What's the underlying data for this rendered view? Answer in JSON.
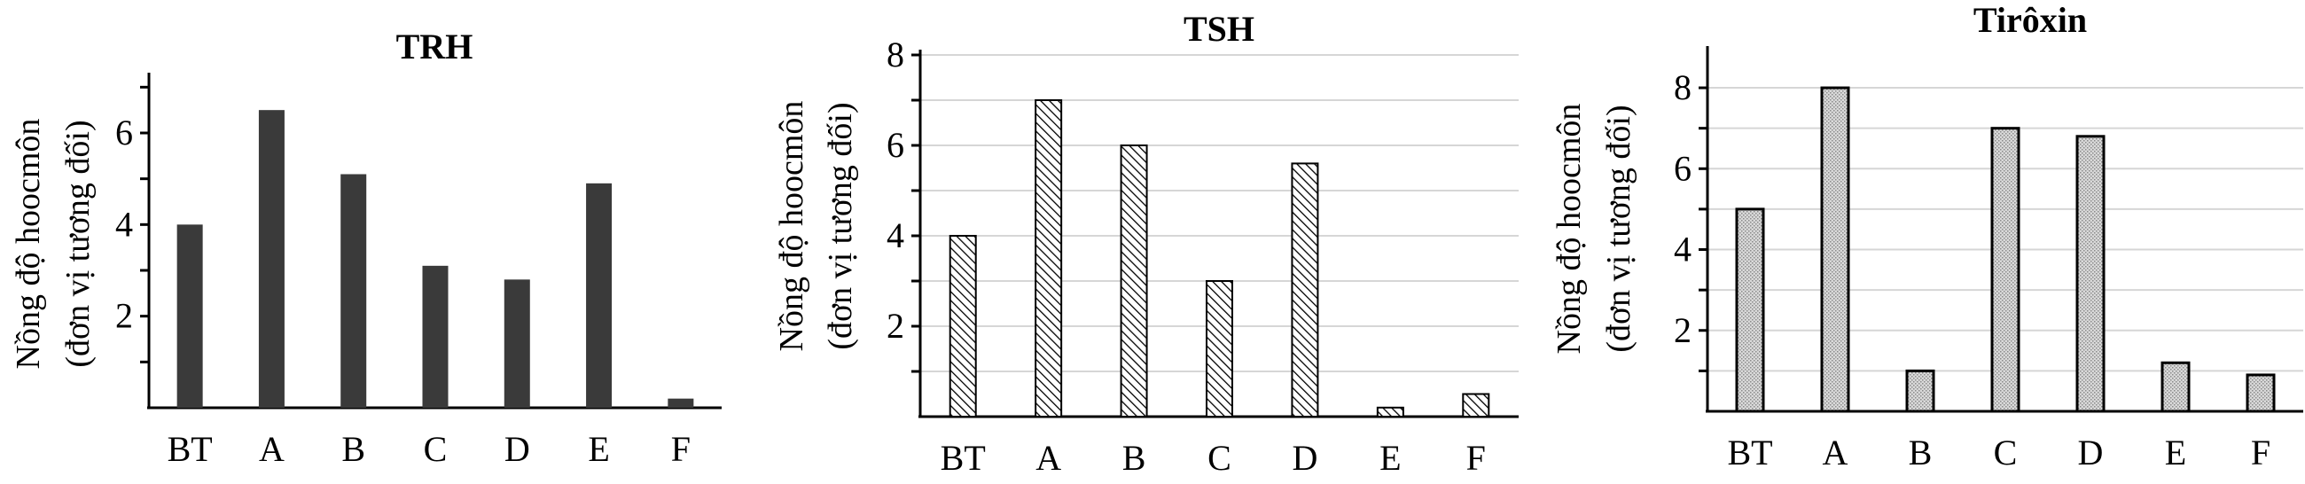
{
  "chart_data": [
    {
      "type": "bar",
      "title": "TRH",
      "ylabel_line1": "Nồng độ hoocmôn",
      "ylabel_line2": "(đơn vị tương đối)",
      "categories": [
        "BT",
        "A",
        "B",
        "C",
        "D",
        "E",
        "F"
      ],
      "values": [
        4.0,
        6.5,
        5.1,
        3.1,
        2.8,
        4.9,
        0.2
      ],
      "yticks": [
        2,
        4,
        6
      ],
      "ylim": [
        0,
        7.2
      ],
      "grid": false,
      "bar_style": "solid",
      "bar_color": "#3a3a3a"
    },
    {
      "type": "bar",
      "title": "TSH",
      "ylabel_line1": "Nồng độ hoocmôn",
      "ylabel_line2": "(đơn vị tương đối)",
      "categories": [
        "BT",
        "A",
        "B",
        "C",
        "D",
        "E",
        "F"
      ],
      "values": [
        4.0,
        7.0,
        6.0,
        3.0,
        5.6,
        0.2,
        0.5
      ],
      "yticks": [
        2,
        4,
        6,
        8
      ],
      "ylim": [
        0,
        8
      ],
      "grid": true,
      "bar_style": "diagonal-hatch",
      "bar_color": "#000000"
    },
    {
      "type": "bar",
      "title": "Tirôxin",
      "ylabel_line1": "Nồng độ hoocmôn",
      "ylabel_line2": "(đơn vị tương đối)",
      "categories": [
        "BT",
        "A",
        "B",
        "C",
        "D",
        "E",
        "F"
      ],
      "values": [
        5.0,
        8.0,
        1.0,
        7.0,
        6.8,
        1.2,
        0.9
      ],
      "yticks": [
        2,
        4,
        6,
        8
      ],
      "ylim": [
        0,
        8.9
      ],
      "grid": true,
      "bar_style": "dotted-hatch",
      "bar_color": "#d9d9d9"
    }
  ]
}
